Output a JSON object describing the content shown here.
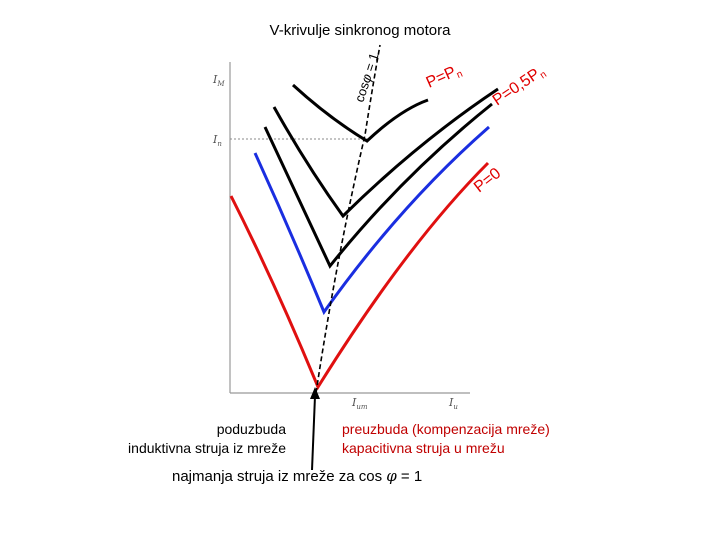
{
  "title": "V-krivulje sinkronog motora",
  "axes": {
    "y_max_label": "I",
    "y_max_sub": "M",
    "y_nom_label": "I",
    "y_nom_sub": "n",
    "x_min_label": "I",
    "x_min_sub": "um",
    "x_end_label": "I",
    "x_end_sub": "u"
  },
  "curve_labels": {
    "p_nominal": "P=P",
    "p_nominal_sub": "n",
    "p_half": "P=0,5P",
    "p_half_sub": "n",
    "p_zero": "P=0",
    "cos_phi": "cos",
    "cos_phi_sym": "φ",
    "cos_phi_eq": " = 1"
  },
  "captions": {
    "left_line1": "poduzbuda",
    "left_line2": "induktivna struja iz mreže",
    "right_line1": "preuzbuda (kompenzacija mreže)",
    "right_line2": "kapacitivna struja u mrežu",
    "bottom_prefix": "najmanja struja iz mreže za cos ",
    "bottom_phi": "φ",
    "bottom_suffix": " = 1"
  },
  "colors": {
    "curve_red": "#e01010",
    "curve_blue": "#1a2ee0",
    "curve_black": "#000000",
    "label_red": "#e00000",
    "axis_gray": "#999999"
  }
}
